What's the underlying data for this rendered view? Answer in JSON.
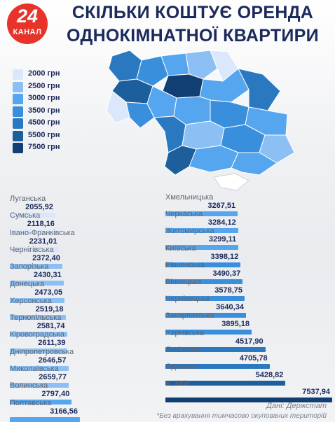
{
  "header": {
    "logo_number": "24",
    "logo_word": "КАНАЛ",
    "title_line1": "СКІЛЬКИ КОШТУЄ ОРЕНДА",
    "title_line2": "ОДНОКІМНАТНОЇ КВАРТИРИ"
  },
  "legend": [
    {
      "label": "2000 грн",
      "color": "#dbe8fb"
    },
    {
      "label": "2500 грн",
      "color": "#8cc0f4"
    },
    {
      "label": "3000 грн",
      "color": "#55a6ee"
    },
    {
      "label": "3500 грн",
      "color": "#3a8fdc"
    },
    {
      "label": "4500 грн",
      "color": "#2a78c0"
    },
    {
      "label": "5500 грн",
      "color": "#1d5f9c"
    },
    {
      "label": "7500 грн",
      "color": "#123f73"
    }
  ],
  "chart_data": {
    "type": "bar",
    "orientation": "horizontal",
    "unit": "грн",
    "categories": [
      "Луганська",
      "Сумська",
      "Івано-Франківська",
      "Чернігівська",
      "Запорізька",
      "Донецька",
      "Херсонська",
      "Тернопільська",
      "Кіровоградська",
      "Дніпропетровська",
      "Миколаївська",
      "Волинська",
      "Полтавська",
      "Хмельницька",
      "Черкаська",
      "Житомирська",
      "Київська",
      "Рівненська",
      "Вінницька",
      "Чернівецька",
      "Закарпатська",
      "Харківська",
      "Львівська",
      "Одеська",
      "м. Київ"
    ],
    "values": [
      2055.92,
      2118.16,
      2231.01,
      2372.4,
      2430.31,
      2473.05,
      2519.18,
      2581.74,
      2611.39,
      2646.57,
      2659.77,
      2797.4,
      3166.56,
      3267.51,
      3284.12,
      3299.11,
      3398.12,
      3490.37,
      3578.75,
      3640.34,
      3895.18,
      4517.9,
      4705.78,
      5428.82,
      7537.94
    ],
    "value_labels": [
      "2055,92",
      "2118,16",
      "2231,01",
      "2372,40",
      "2430,31",
      "2473,05",
      "2519,18",
      "2581,74",
      "2611,39",
      "2646,57",
      "2659,77",
      "2797,40",
      "3166,56",
      "3267,51",
      "3284,12",
      "3299,11",
      "3398,12",
      "3490,37",
      "3578,75",
      "3640,34",
      "3895,18",
      "4517,90",
      "4705,78",
      "5428,82",
      "7537,94"
    ]
  },
  "footer": {
    "source": "Дані: Держстат",
    "note": "*Без врахування тимчасово окупованих територій"
  }
}
